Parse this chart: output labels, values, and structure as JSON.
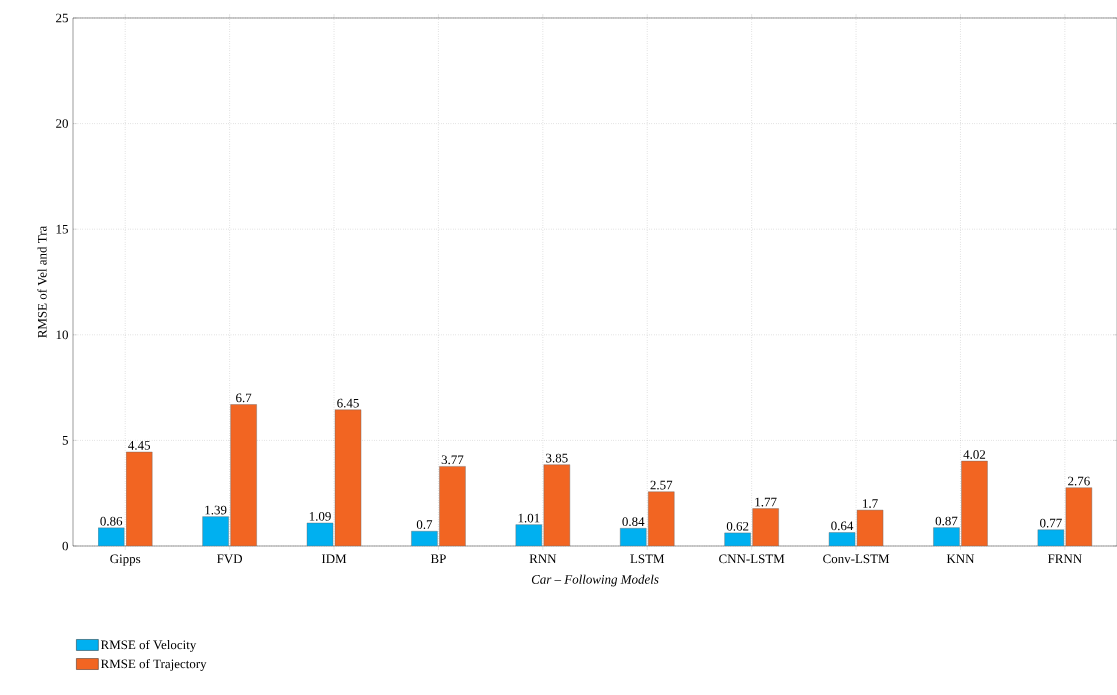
{
  "chart_data": {
    "type": "bar",
    "xlabel": "Car – Following Models",
    "ylabel": "RMSE of Vel and Tra",
    "categories": [
      "Gipps",
      "FVD",
      "IDM",
      "BP",
      "RNN",
      "LSTM",
      "CNN-LSTM",
      "Conv-LSTM",
      "KNN",
      "FRNN"
    ],
    "series": [
      {
        "name": "RMSE of Velocity",
        "color": "#00b0f0",
        "values": [
          0.86,
          1.39,
          1.09,
          0.7,
          1.01,
          0.84,
          0.62,
          0.64,
          0.87,
          0.77
        ]
      },
      {
        "name": "RMSE of Trajectory",
        "color": "#f26522",
        "values": [
          4.45,
          6.7,
          6.45,
          3.77,
          3.85,
          2.57,
          1.77,
          1.7,
          4.02,
          2.76
        ]
      }
    ],
    "ylim": [
      0,
      25
    ],
    "yticks": [
      0,
      5,
      10,
      15,
      20,
      25
    ],
    "grid": true,
    "legend": "bottom left",
    "data_labels": true
  }
}
